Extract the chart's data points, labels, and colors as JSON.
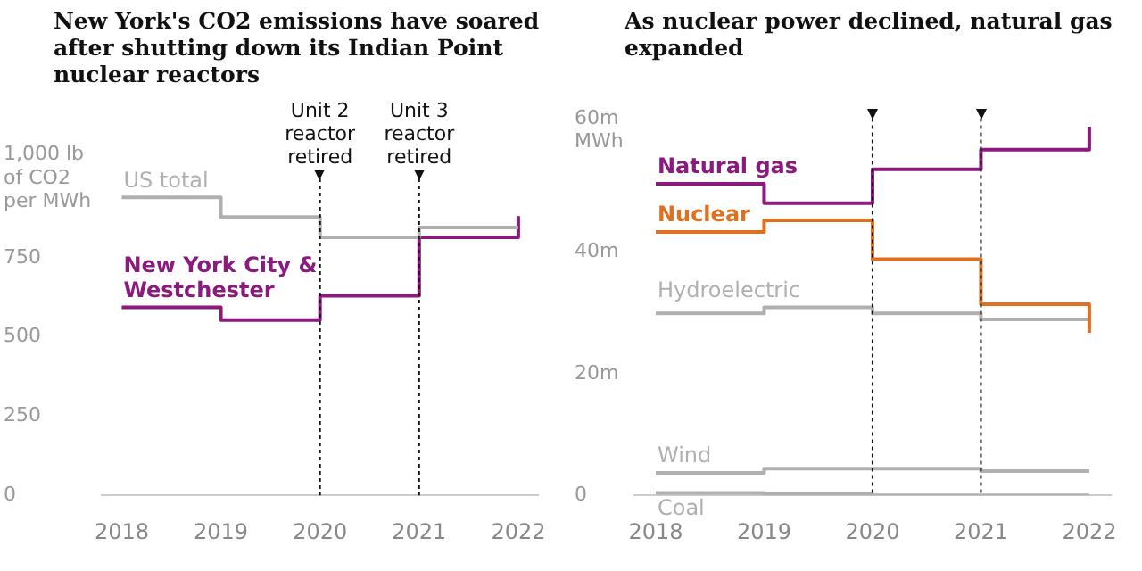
{
  "chart_data": [
    {
      "type": "step",
      "title": "New York's CO2 emissions have soared after shutting down its Indian Point nuclear reactors",
      "x": [
        2018,
        2019,
        2020,
        2021,
        2022
      ],
      "xlim": [
        2017.8,
        2022.2
      ],
      "xticks": [
        2018,
        2019,
        2020,
        2021,
        2022
      ],
      "ylim": [
        0,
        1000
      ],
      "yticks": [
        0,
        250,
        500,
        750,
        {
          "value": 1000,
          "label": "1,000 lb of CO2 per MWh"
        }
      ],
      "series": [
        {
          "name": "US total",
          "color": "#b0b0b0",
          "values": [
            940,
            878,
            814,
            845,
            845
          ]
        },
        {
          "name": "New York City & Westchester",
          "color": "#8b1a7e",
          "values": [
            593,
            553,
            630,
            814,
            881
          ]
        }
      ],
      "ref_lines": [
        {
          "axis": "x",
          "value": 2020,
          "label": "Unit 2 reactor retired"
        },
        {
          "axis": "x",
          "value": 2021,
          "label": "Unit 3 reactor retired"
        }
      ],
      "legend": false,
      "grid": false
    },
    {
      "type": "step",
      "title": "As nuclear power declined, natural gas expanded",
      "x": [
        2018,
        2019,
        2020,
        2021,
        2022
      ],
      "xlim": [
        2017.8,
        2022.2
      ],
      "xticks": [
        2018,
        2019,
        2020,
        2021,
        2022
      ],
      "ylim": [
        0,
        62
      ],
      "yticks": [
        0,
        {
          "value": 20,
          "label": "20m"
        },
        {
          "value": 40,
          "label": "40m"
        },
        {
          "value": 60,
          "label": "60m MWh"
        }
      ],
      "series": [
        {
          "name": "Natural gas",
          "color": "#8b1a7e",
          "values": [
            51.2,
            48.0,
            53.6,
            56.8,
            60.6
          ]
        },
        {
          "name": "Nuclear",
          "color": "#e0701e",
          "values": [
            43.3,
            45.2,
            38.8,
            31.4,
            26.7
          ]
        },
        {
          "name": "Hydroelectric",
          "color": "#b0b0b0",
          "values": [
            29.9,
            30.9,
            29.9,
            28.9,
            28.9
          ]
        },
        {
          "name": "Wind",
          "color": "#b0b0b0",
          "values": [
            3.7,
            4.4,
            4.4,
            4.0,
            4.0
          ]
        },
        {
          "name": "Coal",
          "color": "#b0b0b0",
          "values": [
            0.4,
            0.2,
            0,
            0,
            0
          ]
        }
      ],
      "ref_lines": [
        {
          "axis": "x",
          "value": 2020
        },
        {
          "axis": "x",
          "value": 2021
        }
      ],
      "legend": false,
      "grid": false
    }
  ]
}
